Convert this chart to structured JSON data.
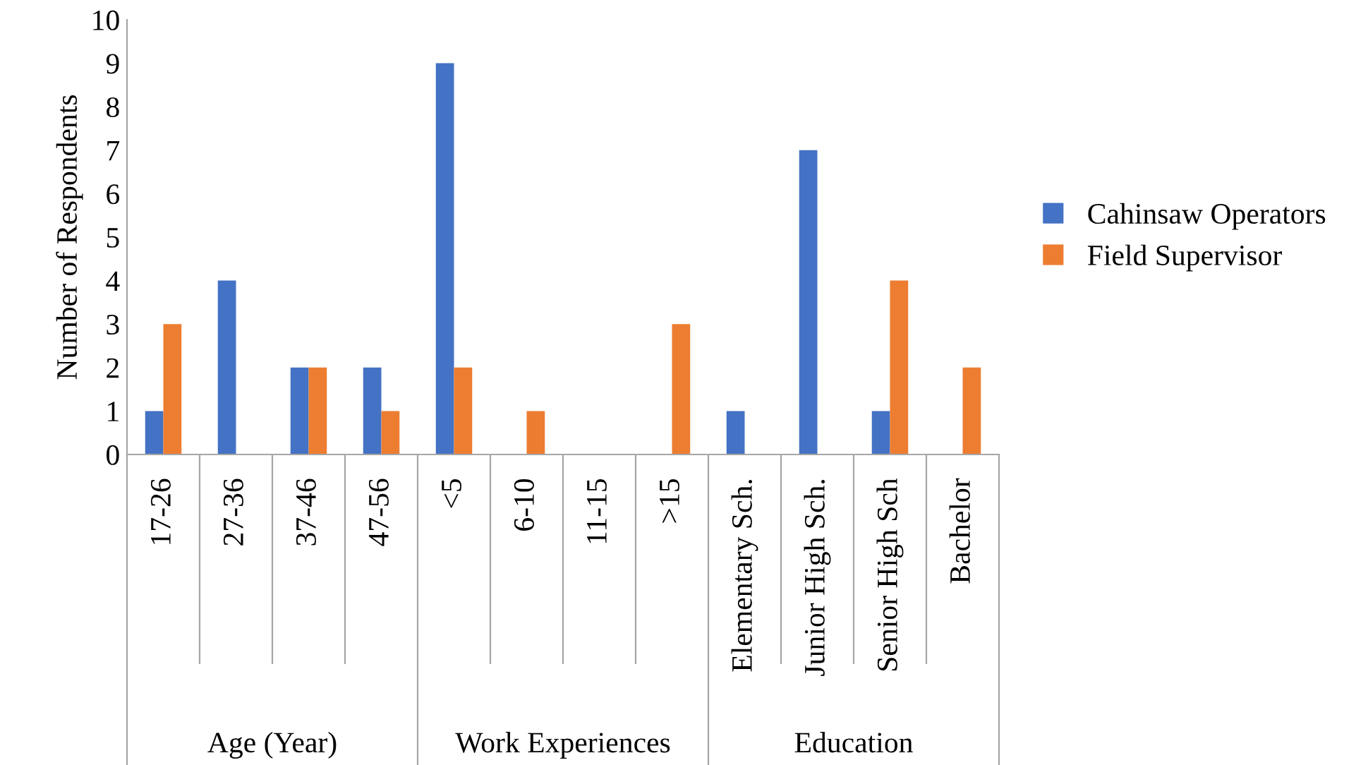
{
  "chart_data": {
    "type": "bar",
    "ylabel": "Number of Respondents",
    "categories": [
      "17-26",
      "27-36",
      "37-46",
      "47-56",
      "<5",
      "6-10",
      "11-15",
      ">15",
      "Elementary Sch.",
      "Junior High Sch.",
      "Senior High Sch",
      "Bachelor"
    ],
    "series": [
      {
        "name": "Cahinsaw Operators",
        "color": "#4472c4",
        "values": [
          1,
          4,
          2,
          2,
          9,
          0,
          0,
          0,
          1,
          7,
          1,
          0
        ]
      },
      {
        "name": "Field Supervisor",
        "color": "#ed7d31",
        "values": [
          3,
          0,
          2,
          1,
          2,
          1,
          0,
          3,
          0,
          0,
          4,
          2
        ]
      }
    ],
    "annotations": [
      "Age (Year)",
      "Work Experiences",
      "Education"
    ],
    "ylim": [
      0,
      10
    ],
    "yticks": [
      0,
      1,
      2,
      3,
      4,
      5,
      6,
      7,
      8,
      9,
      10
    ],
    "grid": false,
    "legend": "right"
  }
}
